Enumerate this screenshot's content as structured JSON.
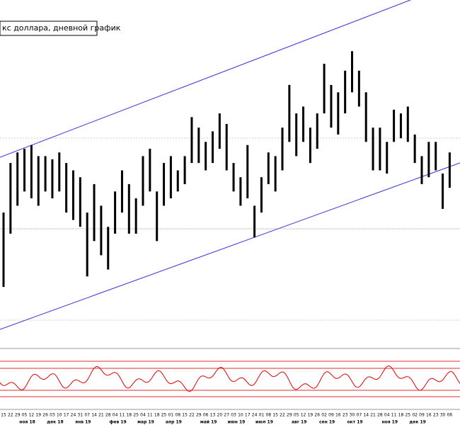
{
  "chart_data": {
    "type": "hilo",
    "title": "кс доллара, дневной график",
    "categories": [
      "15",
      "22",
      "29",
      "05",
      "12",
      "19",
      "26",
      "03",
      "10",
      "17",
      "24",
      "31",
      "07",
      "14",
      "21",
      "28",
      "04",
      "11",
      "18",
      "25",
      "04",
      "11",
      "18",
      "25",
      "01",
      "08",
      "15",
      "22",
      "29",
      "06",
      "13",
      "20",
      "27",
      "03",
      "10",
      "17",
      "24",
      "01",
      "08",
      "15",
      "22",
      "29",
      "05",
      "12",
      "19",
      "26",
      "02",
      "09",
      "16",
      "23",
      "30",
      "07",
      "14",
      "21",
      "28",
      "04",
      "11",
      "18",
      "25",
      "02",
      "09",
      "16",
      "23",
      "30",
      "06"
    ],
    "month_labels": [
      "ноя 18",
      "дек 18",
      "янв 19",
      "фев 19",
      "мар 19",
      "апр 19",
      "май 19",
      "июн 19",
      "июл 19",
      "авг 19",
      "сен 19",
      "окт 19",
      "ноя 19",
      "дек 19"
    ],
    "color": "#000000",
    "high": [
      96.41,
      97.35,
      97.55,
      97.62,
      97.69,
      97.48,
      97.48,
      97.42,
      97.55,
      97.35,
      97.21,
      97.08,
      96.41,
      96.95,
      96.54,
      96.14,
      96.81,
      97.21,
      96.95,
      96.68,
      97.48,
      97.62,
      96.81,
      97.35,
      97.48,
      97.21,
      97.48,
      98.22,
      98.02,
      97.75,
      97.95,
      98.29,
      98.09,
      97.35,
      97.08,
      97.69,
      96.54,
      97.08,
      97.55,
      97.48,
      98.02,
      98.83,
      98.29,
      98.42,
      98.02,
      98.29,
      99.23,
      98.83,
      98.69,
      99.1,
      99.47,
      99.1,
      98.69,
      98.02,
      98.02,
      97.75,
      98.36,
      98.29,
      98.42,
      97.89,
      97.48,
      97.75,
      97.75,
      97.15,
      97.55
    ],
    "low": [
      95.0,
      96.01,
      96.54,
      96.81,
      96.68,
      96.54,
      96.81,
      96.68,
      96.81,
      96.41,
      96.27,
      96.14,
      95.2,
      95.87,
      95.6,
      95.33,
      96.01,
      96.41,
      96.01,
      96.01,
      96.54,
      96.81,
      95.87,
      96.54,
      96.68,
      96.81,
      96.95,
      97.35,
      97.35,
      97.21,
      97.35,
      97.62,
      97.21,
      96.81,
      96.54,
      96.68,
      95.94,
      96.41,
      96.95,
      96.81,
      97.21,
      97.75,
      97.48,
      97.75,
      97.35,
      97.62,
      98.29,
      98.02,
      97.89,
      98.29,
      98.69,
      98.42,
      97.75,
      97.21,
      97.21,
      97.15,
      97.75,
      97.82,
      97.75,
      97.35,
      96.95,
      97.08,
      97.21,
      96.48,
      96.88
    ],
    "ylim": [
      93.86,
      100.44
    ]
  }
}
